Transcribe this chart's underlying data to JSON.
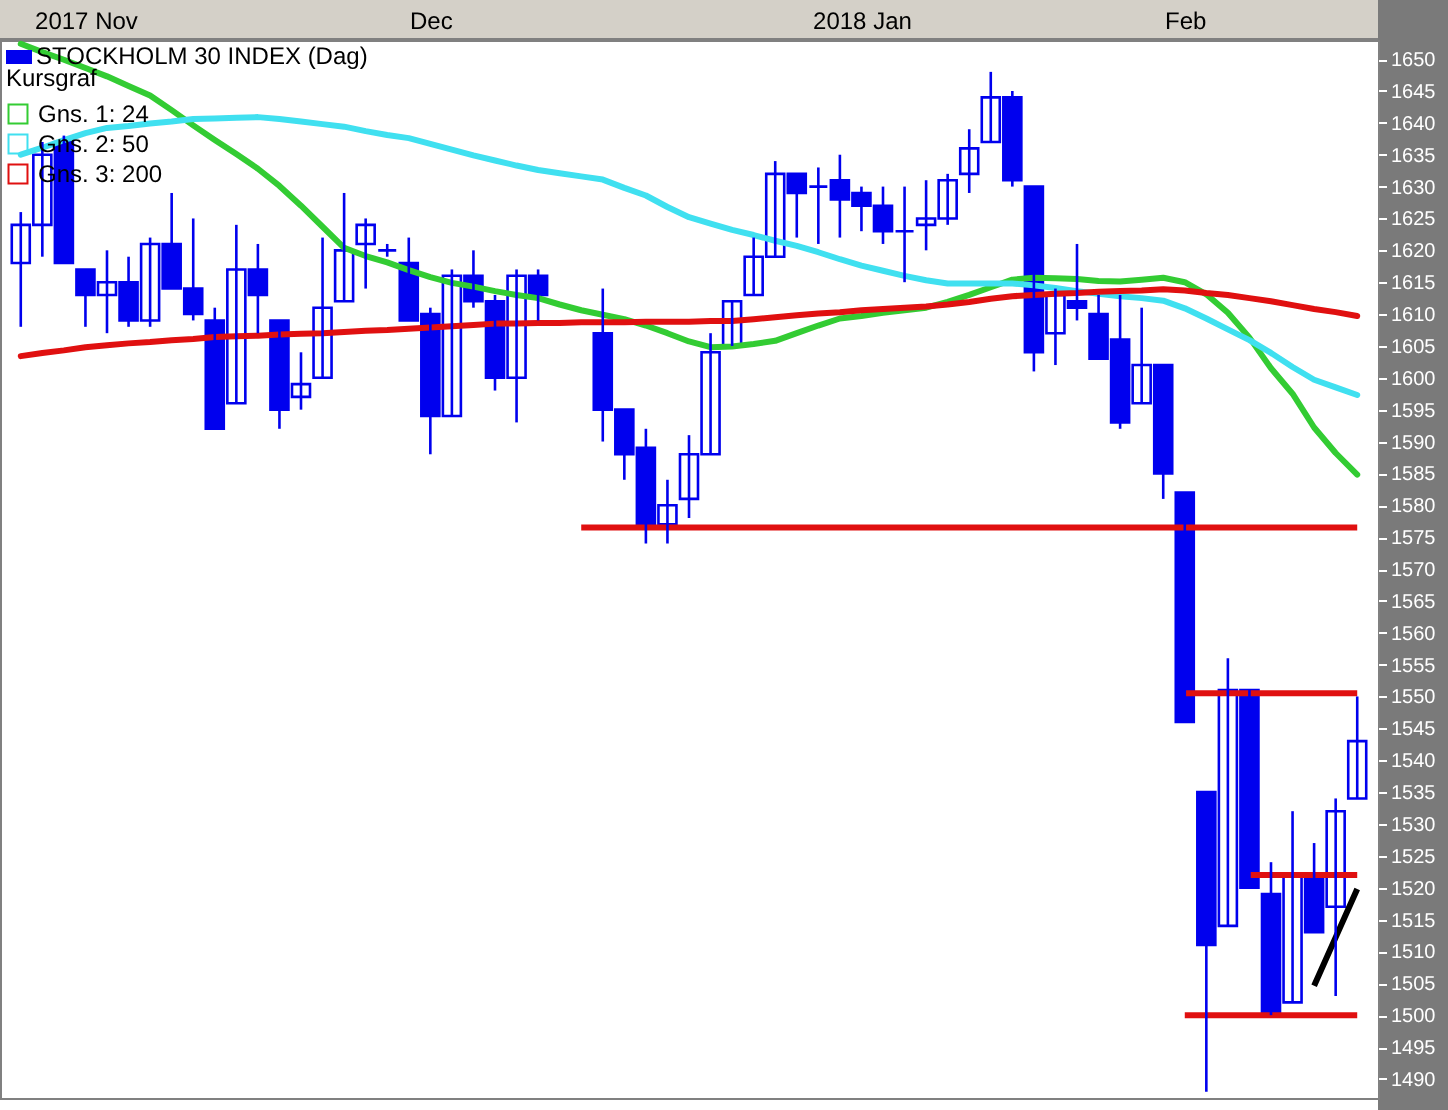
{
  "chart_data": {
    "type": "candlestick",
    "title": "STOCKHOLM 30 INDEX (Dag)",
    "legend_title": "Kursgraf",
    "color": "#0000ee",
    "categories": [
      null,
      null,
      null,
      "2017 Nov",
      null,
      null,
      null,
      null,
      null,
      null,
      null,
      null,
      null,
      null,
      null,
      null,
      null,
      null,
      null,
      "Dec",
      null,
      null,
      null,
      null,
      null,
      null,
      null,
      null,
      null,
      null,
      null,
      null,
      null,
      null,
      null,
      null,
      null,
      null,
      null,
      "2018 Jan",
      null,
      null,
      null,
      null,
      null,
      null,
      null,
      null,
      null,
      null,
      null,
      null,
      null,
      null,
      "Feb",
      null,
      null,
      null,
      null,
      null,
      null,
      null,
      null
    ],
    "ohlc": [
      [
        1618,
        1626,
        1608,
        1624
      ],
      [
        1624,
        1637,
        1619,
        1635
      ],
      [
        1637,
        1638,
        1618,
        1618
      ],
      [
        1617,
        1617,
        1608,
        1613
      ],
      [
        1613,
        1620,
        1607,
        1615
      ],
      [
        1615,
        1619,
        1608,
        1609
      ],
      [
        1609,
        1622,
        1608,
        1621
      ],
      [
        1621,
        1629,
        1614,
        1614
      ],
      [
        1614,
        1625,
        1609,
        1610
      ],
      [
        1609,
        1611,
        1592,
        1592
      ],
      [
        1596,
        1624,
        1596,
        1617
      ],
      [
        1617,
        1621,
        1607,
        1613
      ],
      [
        1609,
        1609,
        1592,
        1595
      ],
      [
        1597,
        1604,
        1595,
        1599
      ],
      [
        1600,
        1622,
        1600,
        1611
      ],
      [
        1612,
        1629,
        1612,
        1620
      ],
      [
        1621,
        1625,
        1614,
        1624
      ],
      [
        1620,
        1621,
        1619,
        1620
      ],
      [
        1618,
        1622,
        1609,
        1609
      ],
      [
        1610,
        1611,
        1588,
        1594
      ],
      [
        1594,
        1617,
        1594,
        1616
      ],
      [
        1616,
        1620,
        1611,
        1612
      ],
      [
        1612,
        1613,
        1598,
        1600
      ],
      [
        1600,
        1617,
        1593,
        1616
      ],
      [
        1616,
        1617,
        1609,
        1613
      ],
      null,
      null,
      [
        1607,
        1614,
        1590,
        1595
      ],
      [
        1595,
        1595,
        1584,
        1588
      ],
      [
        1589,
        1592,
        1574,
        1577
      ],
      [
        1577,
        1584,
        1574,
        1580
      ],
      [
        1581,
        1591,
        1578,
        1588
      ],
      [
        1588,
        1607,
        1588,
        1604
      ],
      [
        1605,
        1612,
        1605,
        1612
      ],
      [
        1613,
        1622,
        1613,
        1619
      ],
      [
        1619,
        1634,
        1619,
        1632
      ],
      [
        1632,
        1632,
        1622,
        1629
      ],
      [
        1630,
        1633,
        1621,
        1630
      ],
      [
        1631,
        1635,
        1622,
        1628
      ],
      [
        1629,
        1630,
        1623,
        1627
      ],
      [
        1627,
        1630,
        1621,
        1623
      ],
      [
        1623,
        1630,
        1615,
        1623
      ],
      [
        1624,
        1631,
        1620,
        1625
      ],
      [
        1625,
        1632,
        1624,
        1631
      ],
      [
        1632,
        1639,
        1629,
        1636
      ],
      [
        1637,
        1648,
        1637,
        1644
      ],
      [
        1644,
        1645,
        1630,
        1631
      ],
      [
        1630,
        1630,
        1601,
        1604
      ],
      [
        1607,
        1614,
        1602,
        1613
      ],
      [
        1612,
        1621,
        1609,
        1611
      ],
      [
        1610,
        1613,
        1603,
        1603
      ],
      [
        1606,
        1613,
        1592,
        1593
      ],
      [
        1596,
        1611,
        1596,
        1602
      ],
      [
        1602,
        1602,
        1581,
        1585
      ],
      [
        1582,
        1582,
        1546,
        1546
      ],
      [
        1535,
        1535,
        1488,
        1511
      ],
      [
        1514,
        1556,
        1514,
        1551
      ],
      [
        1551,
        1551,
        1520,
        1520
      ],
      [
        1519,
        1524,
        1500,
        1500
      ],
      [
        1502,
        1532,
        1502,
        1522
      ],
      [
        1522,
        1527,
        1513,
        1513
      ],
      [
        1517,
        1534,
        1503,
        1532
      ],
      [
        1534,
        1550,
        1534,
        1543
      ]
    ],
    "ylim": [
      1487,
      1653
    ],
    "yticks": [
      1490,
      1495,
      1500,
      1505,
      1510,
      1515,
      1520,
      1525,
      1530,
      1535,
      1540,
      1545,
      1550,
      1555,
      1560,
      1565,
      1570,
      1575,
      1580,
      1585,
      1590,
      1595,
      1600,
      1605,
      1610,
      1615,
      1620,
      1625,
      1630,
      1635,
      1640,
      1645,
      1650
    ],
    "legend": "top left",
    "series": [
      {
        "name": "Gns. 1: 24",
        "type": "line",
        "color": "#33cc33",
        "values": [
          1652.4,
          1651.1,
          1649.9,
          1648.6,
          1647.3,
          1645.8,
          1644.3,
          1642,
          1639.6,
          1637.3,
          1635.1,
          1632.8,
          1630.1,
          1627,
          1623.7,
          1620.4,
          1619.1,
          1618.1,
          1616.9,
          1615.8,
          1614.9,
          1614.3,
          1613.6,
          1613,
          1612.5,
          1611.5,
          1610.6,
          1609.9,
          1609.2,
          1608.2,
          1607,
          1605.7,
          1604.8,
          1604.9,
          1605.3,
          1605.8,
          1607,
          1608.2,
          1609.3,
          1609.7,
          1610.2,
          1610.6,
          1611,
          1611.9,
          1613,
          1614.2,
          1615.4,
          1615.7,
          1615.6,
          1615.5,
          1615.2,
          1615.1,
          1615.4,
          1615.7,
          1615,
          1613.1,
          1610.2,
          1606.3,
          1601.5,
          1597.5,
          1592.2,
          1588.2,
          1584.8
        ]
      },
      {
        "name": "Gns. 2: 50",
        "type": "line",
        "color": "#40e0f0",
        "values": [
          1635,
          1636.1,
          1637.3,
          1638.4,
          1639.2,
          1639.5,
          1639.9,
          1640.2,
          1640.6,
          1640.7,
          1640.8,
          1640.9,
          1640.6,
          1640.2,
          1639.8,
          1639.4,
          1638.7,
          1638.1,
          1637.6,
          1636.7,
          1635.8,
          1634.9,
          1634.1,
          1633.3,
          1632.6,
          1632.1,
          1631.6,
          1631.1,
          1629.8,
          1628.6,
          1626.8,
          1625.2,
          1624.2,
          1623.2,
          1622.4,
          1621.5,
          1620.7,
          1619.7,
          1618.6,
          1617.6,
          1616.8,
          1616,
          1615.3,
          1614.8,
          1614.8,
          1614.8,
          1614.8,
          1614.5,
          1614.1,
          1613.6,
          1613.2,
          1612.8,
          1612.5,
          1612.1,
          1610.9,
          1609.3,
          1607.6,
          1605.9,
          1603.9,
          1601.7,
          1599.7,
          1598.5,
          1597.3
        ]
      },
      {
        "name": "Gns. 3: 200",
        "type": "line",
        "color": "#e01010",
        "values": [
          1603.4,
          1603.9,
          1604.3,
          1604.8,
          1605.1,
          1605.4,
          1605.6,
          1605.9,
          1606.1,
          1606.4,
          1606.5,
          1606.6,
          1606.8,
          1606.9,
          1607,
          1607.2,
          1607.4,
          1607.5,
          1607.7,
          1607.9,
          1608.1,
          1608.3,
          1608.5,
          1608.5,
          1608.6,
          1608.6,
          1608.7,
          1608.7,
          1608.7,
          1608.8,
          1608.8,
          1608.8,
          1608.9,
          1608.9,
          1609.2,
          1609.5,
          1609.8,
          1610.1,
          1610.3,
          1610.6,
          1610.8,
          1611,
          1611.2,
          1611.5,
          1611.9,
          1612.4,
          1612.8,
          1613,
          1613.2,
          1613.3,
          1613.5,
          1613.6,
          1613.7,
          1613.9,
          1613.7,
          1613.3,
          1613,
          1612.5,
          1612,
          1611.4,
          1610.8,
          1610.3,
          1609.7
        ]
      },
      {
        "type": "line",
        "color": "#e01010",
        "values": [
          null,
          null,
          null,
          null,
          null,
          null,
          null,
          null,
          null,
          null,
          null,
          null,
          null,
          null,
          null,
          null,
          null,
          null,
          null,
          null,
          null,
          null,
          null,
          null,
          null,
          null,
          1576.5,
          1576.5,
          1576.5,
          1576.5,
          1576.5,
          1576.5,
          1576.5,
          1576.5,
          1576.5,
          1576.5,
          1576.5,
          1576.5,
          1576.5,
          1576.5,
          1576.5,
          1576.5,
          1576.5,
          1576.5,
          1576.5,
          1576.5,
          1576.5,
          1576.5,
          1576.5,
          1576.5,
          1576.5,
          1576.5,
          1576.5,
          1576.5,
          1576.5,
          1576.5,
          1576.5,
          1576.5,
          1576.5,
          1576.5,
          1576.5,
          1576.5,
          1576.5
        ]
      },
      {
        "type": "line",
        "color": "#e01010",
        "values": [
          null,
          null,
          null,
          null,
          null,
          null,
          null,
          null,
          null,
          null,
          null,
          null,
          null,
          null,
          null,
          null,
          null,
          null,
          null,
          null,
          null,
          null,
          null,
          null,
          null,
          null,
          null,
          null,
          null,
          null,
          null,
          null,
          null,
          null,
          null,
          null,
          null,
          null,
          null,
          null,
          null,
          null,
          null,
          null,
          null,
          null,
          null,
          null,
          null,
          null,
          null,
          null,
          null,
          null,
          1550.5,
          1550.5,
          1550.5,
          1550.5,
          1550.5,
          1550.5,
          1550.5,
          1550.5,
          1550.5
        ]
      },
      {
        "type": "line",
        "color": "#e01010",
        "values": [
          null,
          null,
          null,
          null,
          null,
          null,
          null,
          null,
          null,
          null,
          null,
          null,
          null,
          null,
          null,
          null,
          null,
          null,
          null,
          null,
          null,
          null,
          null,
          null,
          null,
          null,
          null,
          null,
          null,
          null,
          null,
          null,
          null,
          null,
          null,
          null,
          null,
          null,
          null,
          null,
          null,
          null,
          null,
          null,
          null,
          null,
          null,
          null,
          null,
          null,
          null,
          null,
          null,
          null,
          null,
          null,
          null,
          1522,
          1522,
          1522,
          1522,
          1522,
          1522
        ]
      },
      {
        "type": "line",
        "color": "#e01010",
        "values": [
          null,
          null,
          null,
          null,
          null,
          null,
          null,
          null,
          null,
          null,
          null,
          null,
          null,
          null,
          null,
          null,
          null,
          null,
          null,
          null,
          null,
          null,
          null,
          null,
          null,
          null,
          null,
          null,
          null,
          null,
          null,
          null,
          null,
          null,
          null,
          null,
          null,
          null,
          null,
          null,
          null,
          null,
          null,
          null,
          null,
          null,
          null,
          null,
          null,
          null,
          null,
          null,
          null,
          null,
          1500,
          1500,
          1500,
          1500,
          1500,
          1500,
          1500,
          1500,
          1500
        ]
      },
      {
        "type": "line",
        "color": "#000000",
        "values": [
          null,
          null,
          null,
          null,
          null,
          null,
          null,
          null,
          null,
          null,
          null,
          null,
          null,
          null,
          null,
          null,
          null,
          null,
          null,
          null,
          null,
          null,
          null,
          null,
          null,
          null,
          null,
          null,
          null,
          null,
          null,
          null,
          null,
          null,
          null,
          null,
          null,
          null,
          null,
          null,
          null,
          null,
          null,
          null,
          null,
          null,
          null,
          null,
          null,
          null,
          null,
          null,
          null,
          null,
          null,
          null,
          null,
          null,
          null,
          null,
          1504.6,
          1512.2,
          1519.8
        ]
      }
    ]
  }
}
